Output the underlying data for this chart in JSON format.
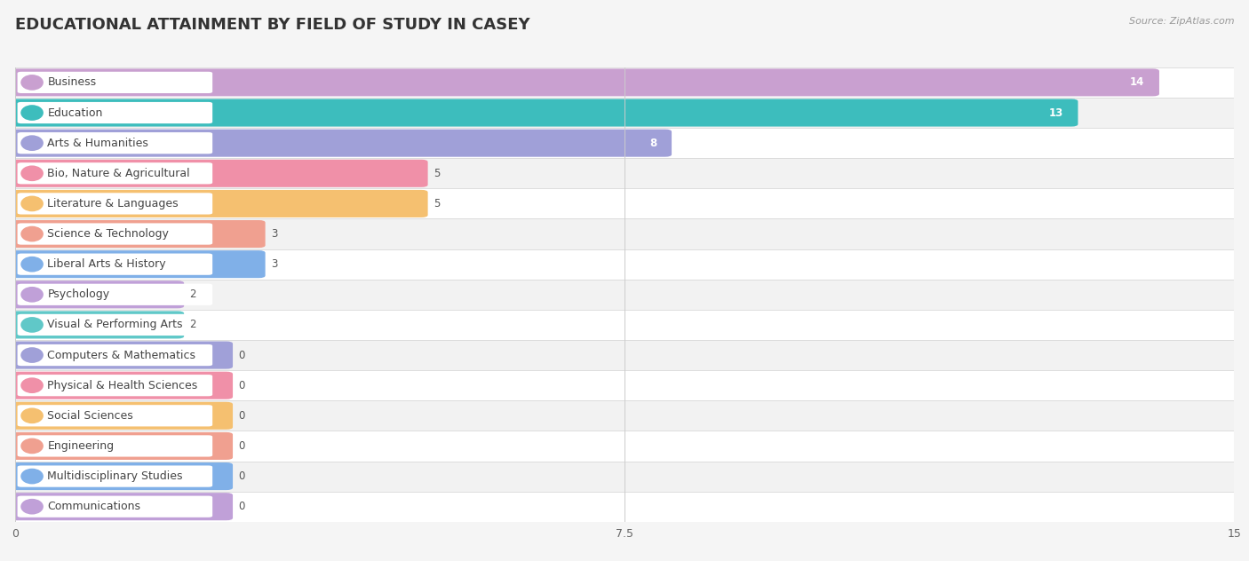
{
  "title": "EDUCATIONAL ATTAINMENT BY FIELD OF STUDY IN CASEY",
  "source": "Source: ZipAtlas.com",
  "categories": [
    "Business",
    "Education",
    "Arts & Humanities",
    "Bio, Nature & Agricultural",
    "Literature & Languages",
    "Science & Technology",
    "Liberal Arts & History",
    "Psychology",
    "Visual & Performing Arts",
    "Computers & Mathematics",
    "Physical & Health Sciences",
    "Social Sciences",
    "Engineering",
    "Multidisciplinary Studies",
    "Communications"
  ],
  "values": [
    14,
    13,
    8,
    5,
    5,
    3,
    3,
    2,
    2,
    0,
    0,
    0,
    0,
    0,
    0
  ],
  "bar_colors": [
    "#c9a0d0",
    "#3dbdbd",
    "#a0a0d8",
    "#f090a8",
    "#f5c070",
    "#f0a090",
    "#80b0e8",
    "#c0a0d8",
    "#60c8c8",
    "#a0a0d8",
    "#f090a8",
    "#f5c070",
    "#f0a090",
    "#80b0e8",
    "#c0a0d8"
  ],
  "xlim": [
    0,
    15
  ],
  "xticks": [
    0,
    7.5,
    15
  ],
  "row_colors": [
    "#f7f7f7",
    "#eeeeee"
  ],
  "background_color": "#f5f5f5",
  "title_fontsize": 13,
  "label_fontsize": 9,
  "value_fontsize": 8.5
}
